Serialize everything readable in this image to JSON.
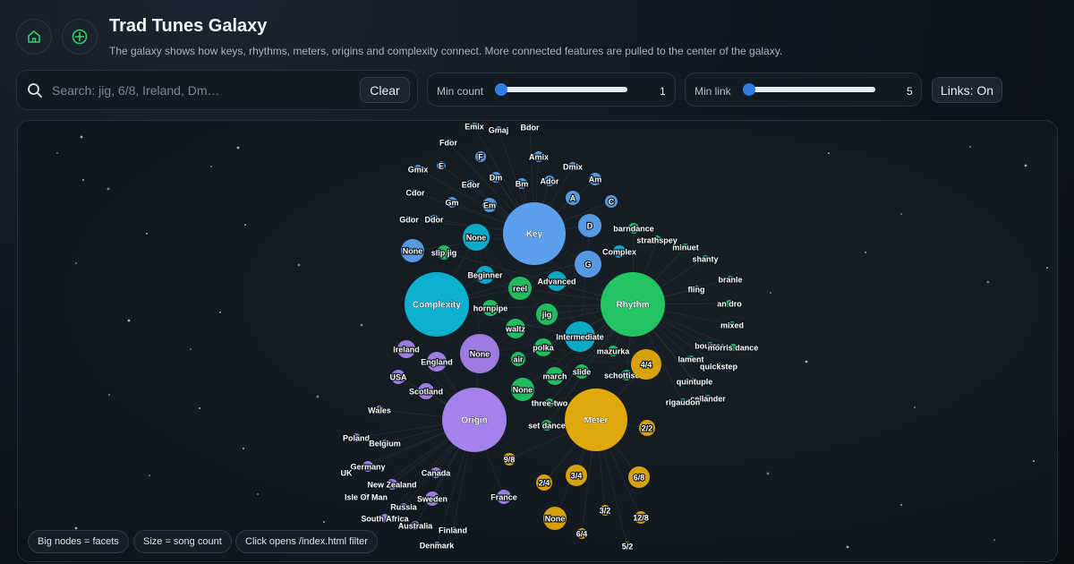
{
  "header": {
    "title": "Trad Tunes Galaxy",
    "subtitle": "The galaxy shows how keys, rhythms, meters, origins and complexity connect. More connected features are pulled to the center of the galaxy.",
    "home_icon": "home-icon",
    "add_icon": "crosshair-icon"
  },
  "search": {
    "placeholder": "Search: jig, 6/8, Ireland, Dm…",
    "value": "",
    "clear_label": "Clear"
  },
  "controls": {
    "min_count_label": "Min count",
    "min_count_value": "1",
    "min_count_fraction": 0.0,
    "min_link_label": "Min link",
    "min_link_value": "5",
    "min_link_fraction": 0.0,
    "links_toggle_label": "Links: On"
  },
  "legend": [
    "Big nodes = facets",
    "Size = song count",
    "Click opens /index.html filter"
  ],
  "colors": {
    "key": "#5aa0ec",
    "rhythm": "#22c463",
    "meter": "#e1a80c",
    "origin": "#a382ea",
    "complexity": "#0cb1cf",
    "link": "#9aa6b2"
  },
  "galaxy": {
    "hubs": [
      {
        "label": "Key",
        "facet": "key"
      },
      {
        "label": "Rhythm",
        "facet": "rhythm"
      },
      {
        "label": "Complexity",
        "facet": "complexity"
      },
      {
        "label": "Origin",
        "facet": "origin"
      },
      {
        "label": "Meter",
        "facet": "meter"
      }
    ],
    "nodes": [
      {
        "label": "Emix",
        "facet": "key"
      },
      {
        "label": "Gmaj",
        "facet": "key"
      },
      {
        "label": "Bdor",
        "facet": "key"
      },
      {
        "label": "Fdor",
        "facet": "key"
      },
      {
        "label": "F",
        "facet": "key"
      },
      {
        "label": "Amix",
        "facet": "key"
      },
      {
        "label": "Gmix",
        "facet": "key"
      },
      {
        "label": "E",
        "facet": "key"
      },
      {
        "label": "Dmix",
        "facet": "key"
      },
      {
        "label": "Dm",
        "facet": "key"
      },
      {
        "label": "Edor",
        "facet": "key"
      },
      {
        "label": "Bm",
        "facet": "key"
      },
      {
        "label": "Ador",
        "facet": "key"
      },
      {
        "label": "Am",
        "facet": "key"
      },
      {
        "label": "Cdor",
        "facet": "key"
      },
      {
        "label": "A",
        "facet": "key"
      },
      {
        "label": "C",
        "facet": "key"
      },
      {
        "label": "Gm",
        "facet": "key"
      },
      {
        "label": "Em",
        "facet": "key"
      },
      {
        "label": "Gdor",
        "facet": "key"
      },
      {
        "label": "Ddor",
        "facet": "key"
      },
      {
        "label": "D",
        "facet": "key"
      },
      {
        "label": "None",
        "facet": "key"
      },
      {
        "label": "G",
        "facet": "key"
      },
      {
        "label": "None",
        "facet": "complexity"
      },
      {
        "label": "Beginner",
        "facet": "complexity"
      },
      {
        "label": "Advanced",
        "facet": "complexity"
      },
      {
        "label": "Complex",
        "facet": "complexity"
      },
      {
        "label": "Intermediate",
        "facet": "complexity"
      },
      {
        "label": "slip jig",
        "facet": "rhythm"
      },
      {
        "label": "barndance",
        "facet": "rhythm"
      },
      {
        "label": "strathspey",
        "facet": "rhythm"
      },
      {
        "label": "minuet",
        "facet": "rhythm"
      },
      {
        "label": "shanty",
        "facet": "rhythm"
      },
      {
        "label": "reel",
        "facet": "rhythm"
      },
      {
        "label": "branle",
        "facet": "rhythm"
      },
      {
        "label": "fling",
        "facet": "rhythm"
      },
      {
        "label": "hornpipe",
        "facet": "rhythm"
      },
      {
        "label": "jig",
        "facet": "rhythm"
      },
      {
        "label": "an dro",
        "facet": "rhythm"
      },
      {
        "label": "mixed",
        "facet": "rhythm"
      },
      {
        "label": "waltz",
        "facet": "rhythm"
      },
      {
        "label": "polka",
        "facet": "rhythm"
      },
      {
        "label": "mazurka",
        "facet": "rhythm"
      },
      {
        "label": "bourree",
        "facet": "rhythm"
      },
      {
        "label": "morris dance",
        "facet": "rhythm"
      },
      {
        "label": "lament",
        "facet": "rhythm"
      },
      {
        "label": "quickstep",
        "facet": "rhythm"
      },
      {
        "label": "air",
        "facet": "rhythm"
      },
      {
        "label": "slide",
        "facet": "rhythm"
      },
      {
        "label": "march",
        "facet": "rhythm"
      },
      {
        "label": "schottische",
        "facet": "rhythm"
      },
      {
        "label": "quintuple",
        "facet": "rhythm"
      },
      {
        "label": "None",
        "facet": "rhythm"
      },
      {
        "label": "ceilander",
        "facet": "rhythm"
      },
      {
        "label": "rigaudon",
        "facet": "rhythm"
      },
      {
        "label": "three-two",
        "facet": "rhythm"
      },
      {
        "label": "set dance",
        "facet": "rhythm"
      },
      {
        "label": "4/4",
        "facet": "meter"
      },
      {
        "label": "2/2",
        "facet": "meter"
      },
      {
        "label": "9/8",
        "facet": "meter"
      },
      {
        "label": "3/4",
        "facet": "meter"
      },
      {
        "label": "6/8",
        "facet": "meter"
      },
      {
        "label": "2/4",
        "facet": "meter"
      },
      {
        "label": "3/2",
        "facet": "meter"
      },
      {
        "label": "None",
        "facet": "meter"
      },
      {
        "label": "12/8",
        "facet": "meter"
      },
      {
        "label": "6/4",
        "facet": "meter"
      },
      {
        "label": "5/2",
        "facet": "meter"
      },
      {
        "label": "None",
        "facet": "origin"
      },
      {
        "label": "Ireland",
        "facet": "origin"
      },
      {
        "label": "England",
        "facet": "origin"
      },
      {
        "label": "USA",
        "facet": "origin"
      },
      {
        "label": "Scotland",
        "facet": "origin"
      },
      {
        "label": "Wales",
        "facet": "origin"
      },
      {
        "label": "Poland",
        "facet": "origin"
      },
      {
        "label": "Belgium",
        "facet": "origin"
      },
      {
        "label": "Germany",
        "facet": "origin"
      },
      {
        "label": "UK",
        "facet": "origin"
      },
      {
        "label": "Canada",
        "facet": "origin"
      },
      {
        "label": "New Zealand",
        "facet": "origin"
      },
      {
        "label": "Isle Of Man",
        "facet": "origin"
      },
      {
        "label": "Sweden",
        "facet": "origin"
      },
      {
        "label": "France",
        "facet": "origin"
      },
      {
        "label": "Russia",
        "facet": "origin"
      },
      {
        "label": "South Africa",
        "facet": "origin"
      },
      {
        "label": "Australia",
        "facet": "origin"
      },
      {
        "label": "Finland",
        "facet": "origin"
      },
      {
        "label": "Denmark",
        "facet": "origin"
      }
    ]
  }
}
